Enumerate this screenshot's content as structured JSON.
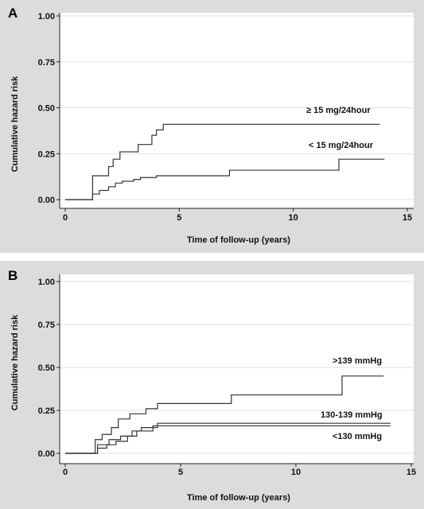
{
  "chart_data": [
    {
      "type": "line",
      "step": true,
      "panel_label": "A",
      "xlabel": "Time of follow-up (years)",
      "ylabel": "Cumulative hazard risk",
      "xlim": [
        0,
        15
      ],
      "ylim": [
        0,
        1
      ],
      "xticks": [
        0,
        5,
        10,
        15
      ],
      "yticks": [
        "0.00",
        "0.25",
        "0.50",
        "0.75",
        "1.00"
      ],
      "grid": "horizontal",
      "series": [
        {
          "name": "≥ 15 mg/24hour",
          "x": [
            0,
            1.1,
            1.2,
            1.8,
            1.9,
            2.1,
            2.4,
            2.9,
            3.2,
            3.8,
            4.0,
            4.3,
            13.8
          ],
          "y": [
            0,
            0,
            0.13,
            0.13,
            0.18,
            0.22,
            0.26,
            0.26,
            0.3,
            0.35,
            0.38,
            0.41,
            0.41
          ]
        },
        {
          "name": "< 15 mg/24hour",
          "x": [
            0,
            1.1,
            1.2,
            1.5,
            1.9,
            2.2,
            2.5,
            3.0,
            3.3,
            4.0,
            7.2,
            12.0,
            14.0
          ],
          "y": [
            0,
            0,
            0.03,
            0.05,
            0.07,
            0.09,
            0.1,
            0.11,
            0.12,
            0.13,
            0.16,
            0.22,
            0.22
          ]
        }
      ]
    },
    {
      "type": "line",
      "step": true,
      "panel_label": "B",
      "xlabel": "Time of follow-up (years)",
      "ylabel": "Cumulative hazard risk",
      "xlim": [
        0,
        15
      ],
      "ylim": [
        0,
        1
      ],
      "xticks": [
        0,
        5,
        10,
        15
      ],
      "yticks": [
        "0.00",
        "0.25",
        "0.50",
        "0.75",
        "1.00"
      ],
      "grid": "horizontal",
      "series": [
        {
          "name": ">139 mmHg",
          "x": [
            0,
            1.1,
            1.3,
            1.6,
            2.0,
            2.3,
            2.8,
            3.5,
            4.0,
            7.2,
            12.0,
            13.8
          ],
          "y": [
            0,
            0,
            0.08,
            0.11,
            0.15,
            0.2,
            0.23,
            0.26,
            0.29,
            0.34,
            0.45,
            0.45
          ]
        },
        {
          "name": "130-139 mmHg",
          "x": [
            0,
            1.2,
            1.4,
            1.9,
            2.4,
            2.9,
            3.3,
            4.0,
            14.1
          ],
          "y": [
            0,
            0,
            0.05,
            0.08,
            0.1,
            0.13,
            0.15,
            0.175,
            0.175
          ]
        },
        {
          "name": "<130 mmHg",
          "x": [
            0,
            1.2,
            1.4,
            1.8,
            2.2,
            2.7,
            3.1,
            3.8,
            14.1
          ],
          "y": [
            0,
            0,
            0.03,
            0.05,
            0.07,
            0.1,
            0.13,
            0.16,
            0.16
          ]
        }
      ]
    }
  ]
}
